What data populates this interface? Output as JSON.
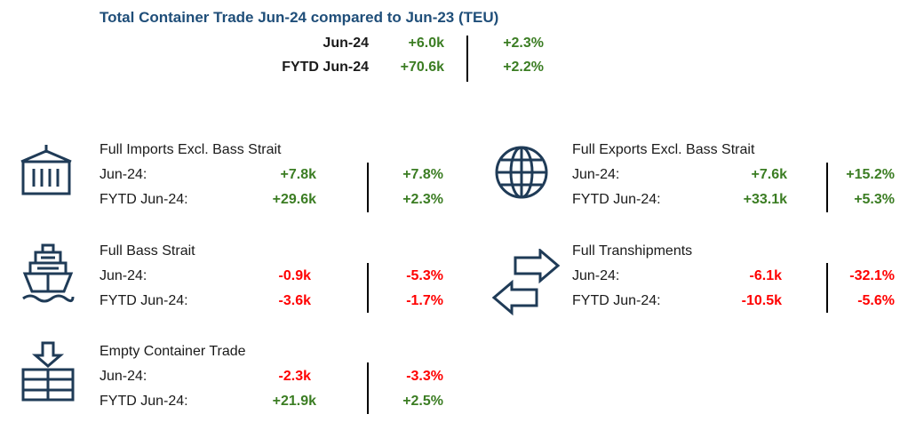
{
  "header": {
    "title": "Total Container Trade Jun-24 compared to Jun-23 (TEU)",
    "rows": [
      {
        "label": "Jun-24",
        "value": "+6.0k",
        "pct": "+2.3%"
      },
      {
        "label": "FYTD Jun-24",
        "value": "+70.6k",
        "pct": "+2.2%"
      }
    ]
  },
  "colors": {
    "title": "#1f4e79",
    "positive": "#3b7d23",
    "negative": "#ff0000",
    "icon": "#1f3b57"
  },
  "sections": [
    {
      "icon": "container-icon",
      "title": "Full Imports Excl. Bass Strait",
      "rows": [
        {
          "label": "Jun-24:",
          "value": "+7.8k",
          "pct": "+7.8%"
        },
        {
          "label": "FYTD Jun-24:",
          "value": "+29.6k",
          "pct": "+2.3%"
        }
      ]
    },
    {
      "icon": "globe-icon",
      "title": "Full Exports Excl. Bass Strait",
      "rows": [
        {
          "label": "Jun-24:",
          "value": "+7.6k",
          "pct": "+15.2%"
        },
        {
          "label": "FYTD Jun-24:",
          "value": "+33.1k",
          "pct": "+5.3%"
        }
      ]
    },
    {
      "icon": "ship-icon",
      "title": "Full Bass Strait",
      "rows": [
        {
          "label": "Jun-24:",
          "value": "-0.9k",
          "pct": "-5.3%"
        },
        {
          "label": "FYTD Jun-24:",
          "value": "-3.6k",
          "pct": "-1.7%"
        }
      ]
    },
    {
      "icon": "transfer-arrows-icon",
      "title": "Full Transhipments",
      "rows": [
        {
          "label": "Jun-24:",
          "value": "-6.1k",
          "pct": "-32.1%"
        },
        {
          "label": "FYTD Jun-24:",
          "value": "-10.5k",
          "pct": "-5.6%"
        }
      ]
    },
    {
      "icon": "empty-container-icon",
      "title": "Empty Container Trade",
      "rows": [
        {
          "label": "Jun-24:",
          "value": "-2.3k",
          "pct": "-3.3%"
        },
        {
          "label": "FYTD Jun-24:",
          "value": "+21.9k",
          "pct": "+2.5%"
        }
      ]
    }
  ]
}
